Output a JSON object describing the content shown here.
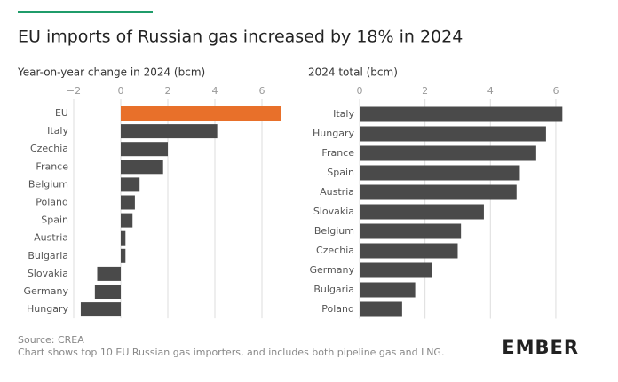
{
  "title": "EU imports of Russian gas increased by 18% in 2024",
  "source": "Source: CREA",
  "note": "Chart shows top 10 EU Russian gas importers, and includes both pipeline gas and LNG.",
  "brand": "EMBER",
  "chart_data": [
    {
      "type": "bar",
      "orientation": "horizontal",
      "title": "Year-on-year change in 2024 (bcm)",
      "categories": [
        "EU",
        "Italy",
        "Czechia",
        "France",
        "Belgium",
        "Poland",
        "Spain",
        "Austria",
        "Bulgaria",
        "Slovakia",
        "Germany",
        "Hungary"
      ],
      "values": [
        6.8,
        4.1,
        2.0,
        1.8,
        0.8,
        0.6,
        0.5,
        0.2,
        0.2,
        -1.0,
        -1.1,
        -1.7
      ],
      "colors": [
        "#e8702a",
        "#4a4a4a",
        "#4a4a4a",
        "#4a4a4a",
        "#4a4a4a",
        "#4a4a4a",
        "#4a4a4a",
        "#4a4a4a",
        "#4a4a4a",
        "#4a4a4a",
        "#4a4a4a",
        "#4a4a4a"
      ],
      "xlim": [
        -2,
        7
      ],
      "xticks": [
        {
          "value": -2,
          "label": "−2"
        },
        0,
        2,
        4,
        6
      ],
      "grid": true
    },
    {
      "type": "bar",
      "orientation": "horizontal",
      "title": "2024 total (bcm)",
      "categories": [
        "Italy",
        "Hungary",
        "France",
        "Spain",
        "Austria",
        "Slovakia",
        "Belgium",
        "Czechia",
        "Germany",
        "Bulgaria",
        "Poland"
      ],
      "values": [
        6.2,
        5.7,
        5.4,
        4.9,
        4.8,
        3.8,
        3.1,
        3.0,
        2.2,
        1.7,
        1.3
      ],
      "colors": [
        "#4a4a4a",
        "#4a4a4a",
        "#4a4a4a",
        "#4a4a4a",
        "#4a4a4a",
        "#4a4a4a",
        "#4a4a4a",
        "#4a4a4a",
        "#4a4a4a",
        "#4a4a4a",
        "#4a4a4a"
      ],
      "xlim": [
        0,
        6.3
      ],
      "xticks": [
        0,
        2,
        4,
        6
      ],
      "grid": true
    }
  ]
}
